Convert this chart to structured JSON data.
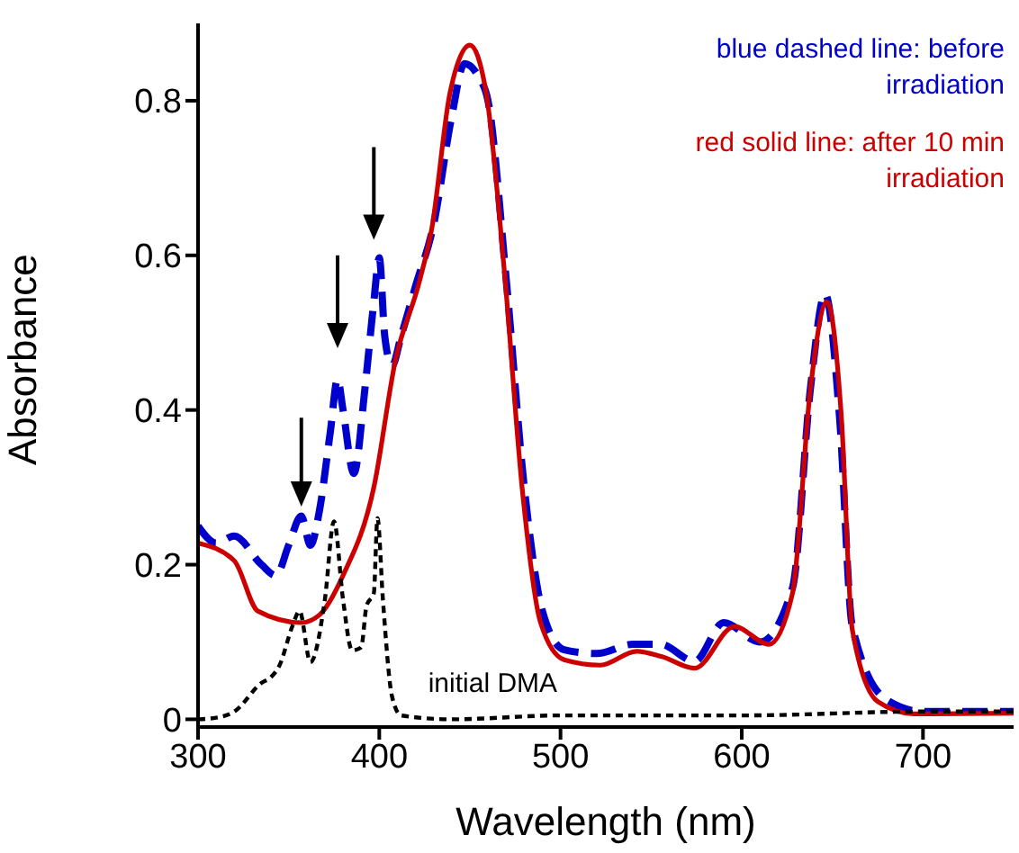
{
  "chart_data": {
    "type": "line",
    "xlabel": "Wavelength (nm)",
    "ylabel": "Absorbance",
    "xlim": [
      300,
      750
    ],
    "ylim": [
      -0.01,
      0.9
    ],
    "xticks": [
      300,
      400,
      500,
      600,
      700
    ],
    "yticks": [
      0,
      0.2,
      0.4,
      0.6,
      0.8
    ],
    "annotations": [
      "blue dashed line: before irradiation",
      "red solid line: after 10 min irradiation"
    ],
    "series": [
      {
        "color": "#0000cc",
        "line_style": "dashed",
        "x": [
          300,
          310,
          320,
          335,
          343,
          350,
          357,
          362,
          367,
          373,
          377,
          380,
          386,
          392,
          397,
          400,
          403,
          407,
          412,
          420,
          430,
          440,
          447,
          455,
          460,
          470,
          480,
          490,
          502,
          520,
          540,
          555,
          574,
          590,
          610,
          628,
          638,
          646,
          654,
          661,
          680,
          700,
          750
        ],
        "values": [
          0.25,
          0.228,
          0.237,
          0.2,
          0.186,
          0.225,
          0.263,
          0.225,
          0.27,
          0.372,
          0.44,
          0.4,
          0.318,
          0.426,
          0.54,
          0.597,
          0.496,
          0.457,
          0.495,
          0.56,
          0.64,
          0.78,
          0.848,
          0.83,
          0.8,
          0.57,
          0.3,
          0.14,
          0.09,
          0.085,
          0.097,
          0.097,
          0.075,
          0.125,
          0.1,
          0.17,
          0.43,
          0.55,
          0.39,
          0.12,
          0.025,
          0.01,
          0.01
        ]
      },
      {
        "color": "#cc0000",
        "line_style": "solid",
        "x": [
          300,
          320,
          333,
          357,
          367,
          380,
          397,
          409,
          422,
          429,
          439,
          450,
          459,
          469,
          479,
          489,
          502,
          522,
          542,
          556,
          574,
          596,
          615,
          628,
          638,
          647,
          655,
          661,
          675,
          695,
          750
        ],
        "values": [
          0.228,
          0.205,
          0.14,
          0.125,
          0.135,
          0.186,
          0.3,
          0.465,
          0.565,
          0.635,
          0.81,
          0.872,
          0.81,
          0.58,
          0.295,
          0.125,
          0.077,
          0.07,
          0.088,
          0.081,
          0.066,
          0.12,
          0.097,
          0.163,
          0.43,
          0.54,
          0.39,
          0.116,
          0.023,
          0.007,
          0.008
        ]
      },
      {
        "name": "initial DMA",
        "color": "#000000",
        "line_style": "dotted",
        "x": [
          300,
          310,
          320,
          335,
          340,
          345,
          352,
          356,
          362,
          370,
          375,
          380,
          385,
          390,
          393,
          397,
          399,
          402,
          407,
          412,
          440,
          500,
          600,
          700,
          750
        ],
        "values": [
          0,
          0.002,
          0.01,
          0.047,
          0.054,
          0.07,
          0.12,
          0.14,
          0.074,
          0.155,
          0.256,
          0.155,
          0.089,
          0.093,
          0.147,
          0.163,
          0.26,
          0.155,
          0.03,
          0.005,
          0,
          0.005,
          0.005,
          0.01,
          0.01
        ]
      }
    ]
  }
}
